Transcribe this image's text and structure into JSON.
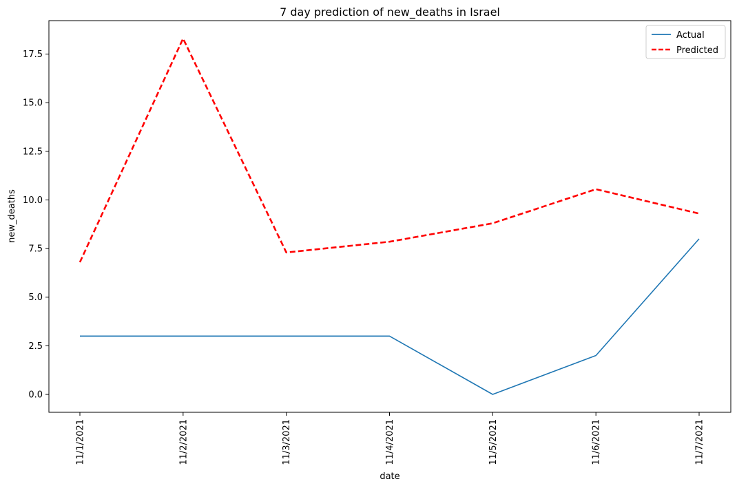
{
  "chart_data": {
    "type": "line",
    "title": "7 day prediction of new_deaths in Israel",
    "xlabel": "date",
    "ylabel": "new_deaths",
    "categories": [
      "11/1/2021",
      "11/2/2021",
      "11/3/2021",
      "11/4/2021",
      "11/5/2021",
      "11/6/2021",
      "11/7/2021"
    ],
    "series": [
      {
        "name": "Actual",
        "values": [
          3,
          3,
          3,
          3,
          0,
          2,
          8
        ],
        "color": "#1f77b4",
        "style": "solid"
      },
      {
        "name": "Predicted",
        "values": [
          6.8,
          18.3,
          7.3,
          7.85,
          8.8,
          10.55,
          9.3
        ],
        "color": "#ff0000",
        "style": "dashed"
      }
    ],
    "ylim": [
      -0.92,
      19.22
    ],
    "yticks": [
      "0.0",
      "2.5",
      "5.0",
      "7.5",
      "10.0",
      "12.5",
      "15.0",
      "17.5"
    ],
    "legend": "top-right",
    "grid": false
  }
}
